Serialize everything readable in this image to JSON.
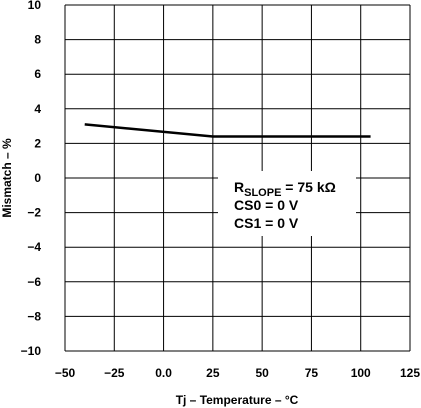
{
  "chart_data": {
    "type": "line",
    "title": "",
    "xlabel": "Tj – Temperature – °C",
    "ylabel": "Mismatch – %",
    "xlim": [
      -50,
      125
    ],
    "ylim": [
      -10,
      10
    ],
    "x_ticks": [
      -50,
      -25,
      0,
      25,
      50,
      75,
      100,
      125
    ],
    "x_tick_labels": [
      "−50",
      "−25",
      "0.0",
      "25",
      "50",
      "75",
      "100",
      "125"
    ],
    "y_ticks": [
      -10,
      -8,
      -6,
      -4,
      -2,
      0,
      2,
      4,
      6,
      8,
      10
    ],
    "y_tick_labels": [
      "−10",
      "−8",
      "−6",
      "−4",
      "−2",
      "0",
      "2",
      "4",
      "6",
      "8",
      "10"
    ],
    "grid": true,
    "series": [
      {
        "x": [
          -40,
          25,
          105
        ],
        "y": [
          3.1,
          2.4,
          2.4
        ],
        "color": "#000000"
      }
    ],
    "annotation": {
      "r_main": "R",
      "r_sub": "SLOPE",
      "r_rest": " = 75 kΩ",
      "line2": "CS0 = 0 V",
      "line3": "CS1 = 0 V"
    }
  }
}
